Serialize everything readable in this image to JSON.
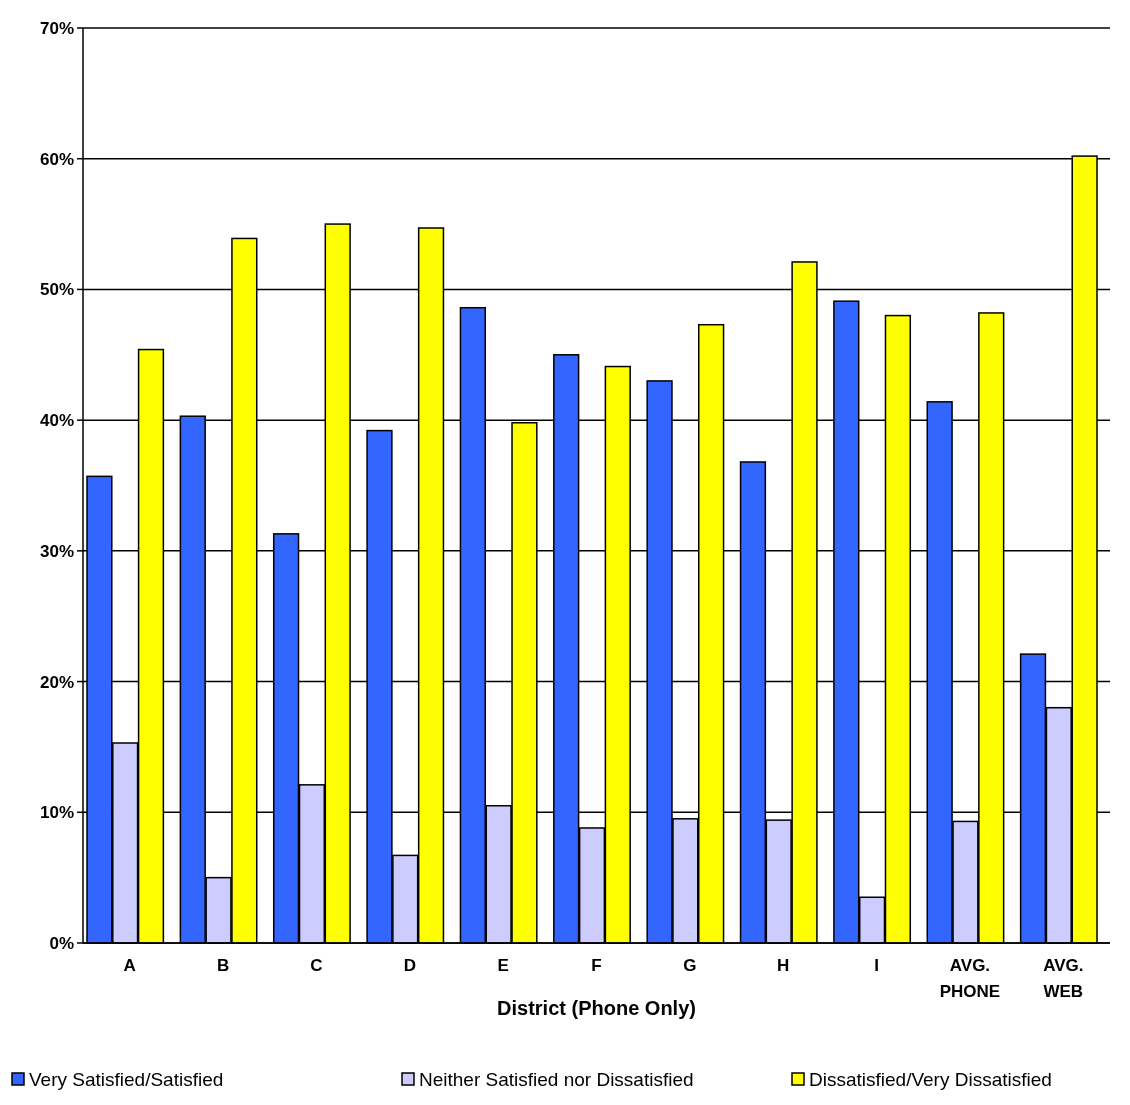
{
  "chart_data": {
    "type": "bar",
    "xlabel": "District (Phone Only)",
    "categories": [
      "A",
      "B",
      "C",
      "D",
      "E",
      "F",
      "G",
      "H",
      "I",
      "AVG. PHONE",
      "AVG. WEB"
    ],
    "series": [
      {
        "name": "Very Satisfied/Satisfied",
        "color": "#3366ff",
        "values": [
          35.7,
          40.3,
          31.3,
          39.2,
          48.6,
          45.0,
          43.0,
          36.8,
          49.1,
          41.4,
          22.1
        ]
      },
      {
        "name": "Neither Satisfied nor Dissatisfied",
        "color": "#ccccff",
        "values": [
          15.3,
          5.0,
          12.1,
          6.7,
          10.5,
          8.8,
          9.5,
          9.4,
          3.5,
          9.3,
          18.0
        ]
      },
      {
        "name": "Dissatisfied/Very Dissatisfied",
        "color": "#ffff00",
        "values": [
          45.4,
          53.9,
          55.0,
          54.7,
          39.8,
          44.1,
          47.3,
          52.1,
          48.0,
          48.2,
          60.2
        ]
      }
    ],
    "ylim": [
      0,
      70
    ],
    "yticks": [
      {
        "value": 0,
        "label": "0%"
      },
      {
        "value": 10,
        "label": "10%"
      },
      {
        "value": 20,
        "label": "20%"
      },
      {
        "value": 30,
        "label": "30%"
      },
      {
        "value": 40,
        "label": "40%"
      },
      {
        "value": 50,
        "label": "50%"
      },
      {
        "value": 60,
        "label": "60%"
      },
      {
        "value": 70,
        "label": "70%"
      }
    ],
    "grid": "y",
    "legend": "bottom"
  }
}
